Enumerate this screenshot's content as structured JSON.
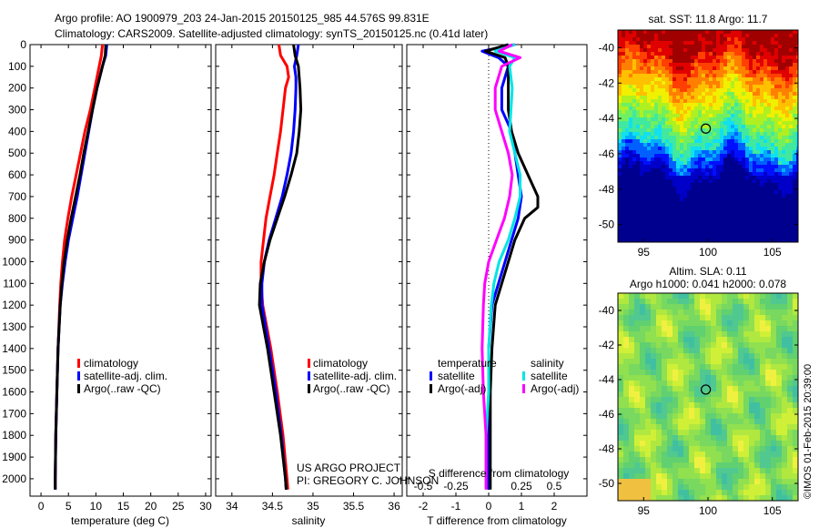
{
  "header": {
    "line1": "Argo profile: AO 1900979_203 24-Jan-2015 20150125_985 44.576S 99.831E",
    "line2": "Climatology: CARS2009. Satellite-adjusted climatology: synTS_20150125.nc (0.41d later)"
  },
  "credit": {
    "line1": "US ARGO PROJECT",
    "line2": "PI: GREGORY C. JOHNSON"
  },
  "timestamp": "©IMOS 01-Feb-2015 20:39:00",
  "colors": {
    "climatology": "#ff0000",
    "satellite": "#0000ff",
    "argo": "#000000",
    "sal_satellite": "#00e5e5",
    "sal_argo": "#ff00ff"
  },
  "chart_data": [
    {
      "type": "line",
      "xlabel": "temperature (deg C)",
      "ylabel": "",
      "xlim": [
        -2,
        31
      ],
      "ylim": [
        2080,
        0
      ],
      "xticks": [
        0,
        5,
        10,
        15,
        20,
        25,
        30
      ],
      "yticks": [
        0,
        100,
        200,
        300,
        400,
        500,
        600,
        700,
        800,
        900,
        1000,
        1100,
        1200,
        1300,
        1400,
        1500,
        1600,
        1700,
        1800,
        1900,
        2000
      ],
      "legend": [
        "climatology",
        "satellite-adj. clim.",
        "Argo(..raw -QC)"
      ],
      "series": [
        {
          "name": "climatology",
          "color": "#ff0000",
          "depth": [
            0,
            50,
            100,
            200,
            300,
            400,
            500,
            600,
            700,
            800,
            900,
            1000,
            1100,
            1200,
            1400,
            1600,
            1800,
            2000,
            2050
          ],
          "values": [
            11.2,
            11.0,
            10.6,
            9.8,
            9.0,
            8.0,
            7.2,
            6.4,
            5.6,
            4.9,
            4.3,
            3.9,
            3.6,
            3.4,
            3.1,
            2.9,
            2.7,
            2.6,
            2.6
          ]
        },
        {
          "name": "satellite-adj. clim.",
          "color": "#0000ff",
          "depth": [
            0,
            50,
            100,
            200,
            300,
            400,
            500,
            600,
            700,
            800,
            900,
            1000,
            1100,
            1200,
            1400,
            1600,
            1800,
            2000,
            2050
          ],
          "values": [
            12.0,
            11.8,
            11.2,
            10.2,
            9.4,
            8.7,
            8.0,
            7.3,
            6.6,
            5.8,
            5.0,
            4.4,
            3.9,
            3.5,
            3.1,
            2.9,
            2.7,
            2.6,
            2.6
          ]
        },
        {
          "name": "Argo(..raw -QC)",
          "color": "#000000",
          "depth": [
            0,
            50,
            100,
            200,
            300,
            400,
            500,
            600,
            700,
            800,
            900,
            1000,
            1100,
            1200,
            1400,
            1600,
            1800,
            2000,
            2050
          ],
          "values": [
            11.8,
            11.7,
            11.2,
            10.2,
            9.4,
            8.6,
            7.8,
            7.1,
            6.3,
            5.5,
            4.8,
            4.2,
            3.8,
            3.5,
            3.1,
            2.9,
            2.7,
            2.6,
            2.6
          ]
        }
      ]
    },
    {
      "type": "line",
      "xlabel": "salinity",
      "xlim": [
        33.8,
        36.1
      ],
      "ylim": [
        2080,
        0
      ],
      "xticks": [
        34,
        34.5,
        35,
        35.5,
        36
      ],
      "legend": [
        "climatology",
        "satellite-adj. clim.",
        "Argo(..raw -QC)"
      ],
      "series": [
        {
          "name": "climatology",
          "color": "#ff0000",
          "depth": [
            0,
            50,
            100,
            150,
            200,
            300,
            400,
            500,
            600,
            700,
            800,
            900,
            1000,
            1100,
            1200,
            1400,
            1600,
            1800,
            2000,
            2050
          ],
          "values": [
            34.58,
            34.6,
            34.68,
            34.7,
            34.66,
            34.63,
            34.6,
            34.56,
            34.52,
            34.47,
            34.42,
            34.39,
            34.36,
            34.36,
            34.38,
            34.48,
            34.56,
            34.63,
            34.68,
            34.69
          ]
        },
        {
          "name": "satellite-adj. clim.",
          "color": "#0000ff",
          "depth": [
            0,
            50,
            100,
            150,
            200,
            300,
            400,
            500,
            600,
            700,
            800,
            900,
            1000,
            1100,
            1200,
            1400,
            1600,
            1800,
            2000,
            2050
          ],
          "values": [
            34.82,
            34.8,
            34.77,
            34.79,
            34.79,
            34.78,
            34.76,
            34.73,
            34.68,
            34.62,
            34.54,
            34.46,
            34.4,
            34.37,
            34.37,
            34.46,
            34.54,
            34.61,
            34.66,
            34.67
          ]
        },
        {
          "name": "Argo(..raw -QC)",
          "color": "#000000",
          "depth": [
            0,
            50,
            100,
            150,
            200,
            300,
            400,
            500,
            600,
            700,
            800,
            900,
            1000,
            1100,
            1200,
            1400,
            1600,
            1800,
            2000,
            2050
          ],
          "values": [
            34.76,
            34.78,
            34.82,
            34.83,
            34.84,
            34.85,
            34.83,
            34.8,
            34.73,
            34.65,
            34.56,
            34.47,
            34.4,
            34.35,
            34.34,
            34.44,
            34.52,
            34.6,
            34.66,
            34.67
          ]
        }
      ]
    },
    {
      "type": "line",
      "xlabel": "T difference from climatology",
      "xlabel_top": "S difference from climatology",
      "xlim": [
        -2.5,
        3.0
      ],
      "xticks": [
        -2,
        -1,
        0,
        1,
        2
      ],
      "xticks_top": [
        "-0.5",
        "-0.25",
        "0",
        "0.25",
        "0.5"
      ],
      "ylim": [
        2080,
        0
      ],
      "legend_groups": [
        {
          "title": "temperature",
          "entries": [
            "satellite",
            "Argo(-adj)"
          ]
        },
        {
          "title": "salinity",
          "entries": [
            "satellite",
            "Argo(-adj)"
          ]
        }
      ],
      "series": [
        {
          "name": "temperature satellite",
          "color": "#0000ff",
          "depth": [
            0,
            30,
            60,
            100,
            200,
            300,
            400,
            500,
            600,
            700,
            800,
            900,
            1000,
            1100,
            1200,
            1400,
            1600,
            1800,
            2000,
            2050
          ],
          "values": [
            0.8,
            -0.2,
            0.3,
            0.6,
            0.4,
            0.4,
            0.7,
            0.8,
            0.9,
            1.0,
            0.9,
            0.7,
            0.5,
            0.3,
            0.1,
            0.0,
            0.0,
            0.0,
            0.0,
            0.0
          ]
        },
        {
          "name": "temperature Argo(-adj)",
          "color": "#000000",
          "depth": [
            0,
            30,
            60,
            100,
            200,
            300,
            400,
            500,
            600,
            700,
            750,
            800,
            900,
            1000,
            1100,
            1200,
            1400,
            1600,
            1800,
            2000,
            2050
          ],
          "values": [
            0.6,
            -0.1,
            0.5,
            0.6,
            0.6,
            0.6,
            0.7,
            0.9,
            1.2,
            1.5,
            1.5,
            1.1,
            0.8,
            0.6,
            0.4,
            0.2,
            0.1,
            0.05,
            0.05,
            0.05,
            0.05
          ]
        },
        {
          "name": "salinity satellite",
          "color": "#00e5e5",
          "depth": [
            0,
            30,
            60,
            100,
            200,
            300,
            400,
            500,
            600,
            700,
            800,
            900,
            1000,
            1100,
            1200,
            1400,
            1600,
            1800,
            2000,
            2050
          ],
          "values": [
            0.2,
            0.05,
            0.2,
            0.16,
            0.18,
            0.17,
            0.16,
            0.2,
            0.24,
            0.24,
            0.2,
            0.15,
            0.08,
            0.04,
            0.02,
            0.0,
            0.0,
            -0.02,
            -0.02,
            -0.02
          ]
        },
        {
          "name": "salinity Argo(-adj)",
          "color": "#ff00ff",
          "depth": [
            0,
            30,
            60,
            100,
            200,
            300,
            400,
            500,
            600,
            700,
            800,
            900,
            1000,
            1100,
            1200,
            1400,
            1600,
            1800,
            2000,
            2050
          ],
          "values": [
            0.18,
            0.08,
            0.24,
            0.1,
            0.05,
            0.05,
            0.1,
            0.15,
            0.18,
            0.16,
            0.12,
            0.06,
            0.0,
            -0.03,
            -0.04,
            -0.05,
            -0.04,
            -0.02,
            -0.02,
            -0.02
          ]
        }
      ]
    },
    {
      "type": "heatmap",
      "title": "sat. SST: 11.8 Argo: 11.7",
      "xlim": [
        93,
        107
      ],
      "ylim": [
        -51,
        -39
      ],
      "xticks": [
        95,
        100,
        105
      ],
      "yticks": [
        -40,
        -42,
        -44,
        -46,
        -48,
        -50
      ],
      "argo_position": [
        99.831,
        -44.576
      ]
    },
    {
      "type": "heatmap",
      "title_line1": "Altim. SLA: 0.11",
      "title_line2": "Argo h1000: 0.041 h2000: 0.078",
      "xlim": [
        93,
        107
      ],
      "ylim": [
        -51,
        -39
      ],
      "xticks": [
        95,
        100,
        105
      ],
      "yticks": [
        -40,
        -42,
        -44,
        -46,
        -48,
        -50
      ],
      "argo_position": [
        99.831,
        -44.576
      ]
    }
  ]
}
